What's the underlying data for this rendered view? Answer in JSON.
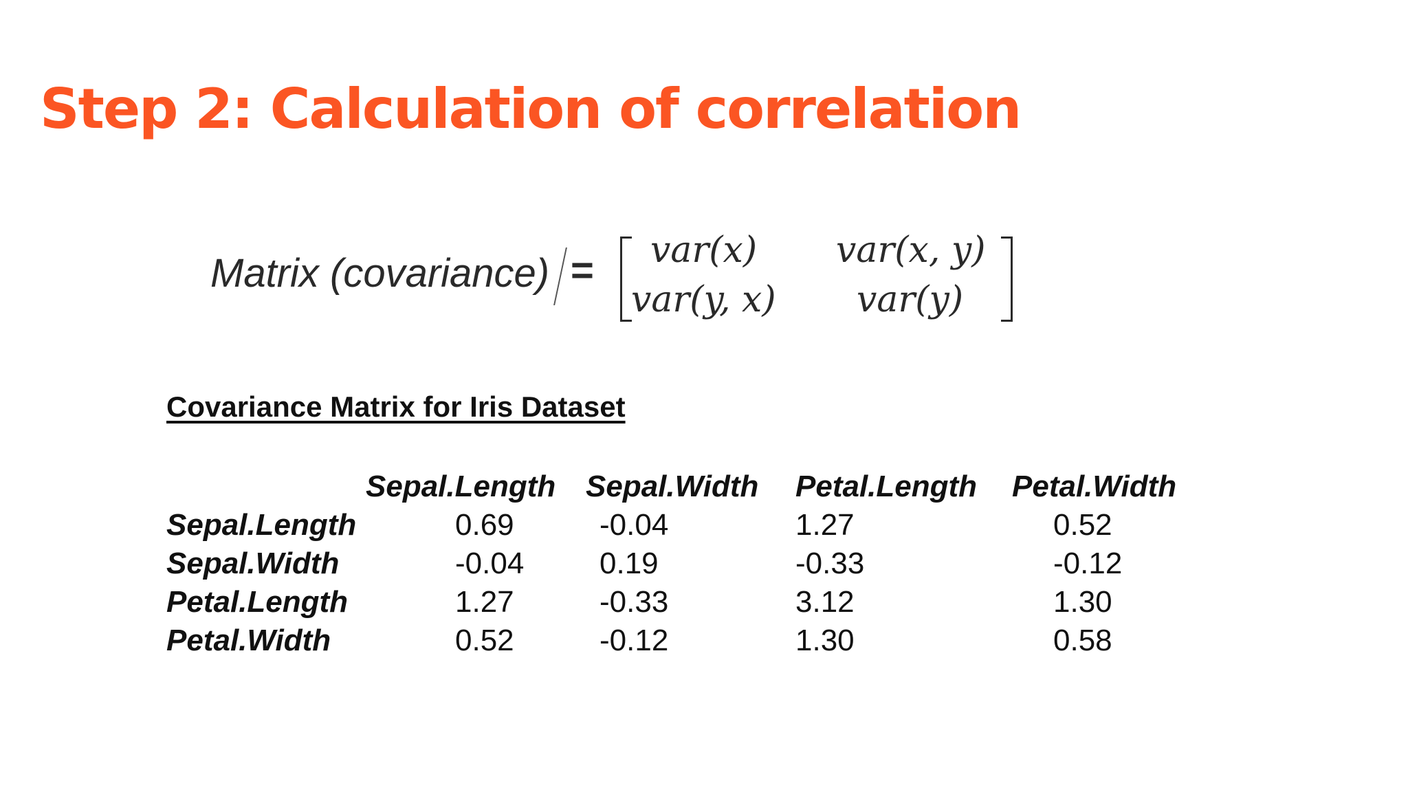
{
  "slide": {
    "title": "Step 2: Calculation of correlation"
  },
  "formula": {
    "label": "Matrix (covariance)",
    "equals": "=",
    "matrix": [
      [
        "var(x)",
        "var(x, y)"
      ],
      [
        "var(y, x)",
        "var(y)"
      ]
    ]
  },
  "covariance": {
    "heading": "Covariance Matrix for Iris Dataset",
    "columns": [
      "Sepal.Length",
      "Sepal.Width",
      "Petal.Length",
      "Petal.Width"
    ],
    "rows": [
      {
        "label": "Sepal.Length",
        "values": [
          "0.69",
          "-0.04",
          "1.27",
          "0.52"
        ]
      },
      {
        "label": "Sepal.Width",
        "values": [
          "-0.04",
          "0.19",
          "-0.33",
          "-0.12"
        ]
      },
      {
        "label": "Petal.Length",
        "values": [
          "1.27",
          "-0.33",
          "3.12",
          "1.30"
        ]
      },
      {
        "label": "Petal.Width",
        "values": [
          "0.52",
          "-0.12",
          "1.30",
          "0.58"
        ]
      }
    ]
  },
  "colors": {
    "title": "#fb5523",
    "text": "#111111"
  }
}
